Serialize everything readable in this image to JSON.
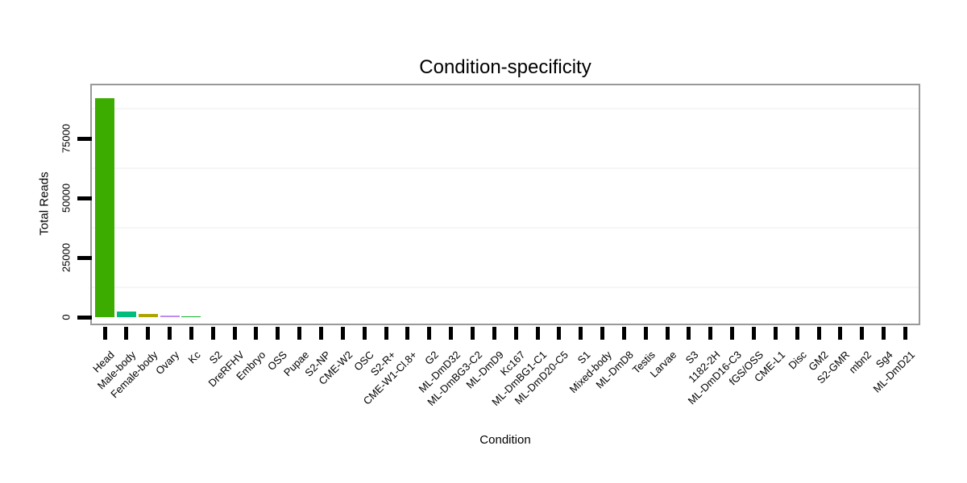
{
  "chart_data": {
    "type": "bar",
    "title": "Condition-specificity",
    "xlabel": "Condition",
    "ylabel": "Total Reads",
    "ylim": [
      0,
      97500
    ],
    "yticks": [
      0,
      25000,
      50000,
      75000
    ],
    "minor_gridlines": [
      12500,
      37500,
      62500,
      87500
    ],
    "grid": "faint horizontal minor gridlines only",
    "legend": "none",
    "categories": [
      "Head",
      "Male-body",
      "Female-body",
      "Ovary",
      "Kc",
      "S2",
      "DreRFHV",
      "Embryo",
      "OSS",
      "Pupae",
      "S2-NP",
      "CME-W2",
      "OSC",
      "S2-R+",
      "CME-W1-Cl.8+",
      "G2",
      "ML-DmD32",
      "ML-DmBG3-C2",
      "ML-DmD9",
      "Kc167",
      "ML-DmBG1-C1",
      "ML-DmD20-C5",
      "S1",
      "Mixed-body",
      "ML-DmD8",
      "Testis",
      "Larvae",
      "S3",
      "1182-2H",
      "ML-DmD16-C3",
      "fGS/OSS",
      "CME-L1",
      "Disc",
      "GM2",
      "S2-GMR",
      "mbn2",
      "Sg4",
      "ML-DmD21"
    ],
    "values": [
      92000,
      2500,
      1500,
      800,
      400,
      0,
      0,
      0,
      0,
      0,
      0,
      0,
      0,
      0,
      0,
      0,
      0,
      0,
      0,
      0,
      0,
      0,
      0,
      0,
      0,
      0,
      0,
      0,
      0,
      0,
      0,
      0,
      0,
      0,
      0,
      0,
      0,
      0
    ],
    "bar_colors": [
      "#3CAC00",
      "#00BD7E",
      "#ADA400",
      "#BE8BF1",
      "#0EB127",
      null,
      null,
      null,
      null,
      null,
      null,
      null,
      null,
      null,
      null,
      null,
      null,
      null,
      null,
      null,
      null,
      null,
      null,
      null,
      null,
      null,
      null,
      null,
      null,
      null,
      null,
      null,
      null,
      null,
      null,
      null,
      null,
      null
    ]
  },
  "colors": {
    "panel_border": "#999999",
    "tick_mark": "#000000",
    "text": "#000000",
    "minor_grid": "#f6f6f6",
    "background": "#ffffff"
  }
}
